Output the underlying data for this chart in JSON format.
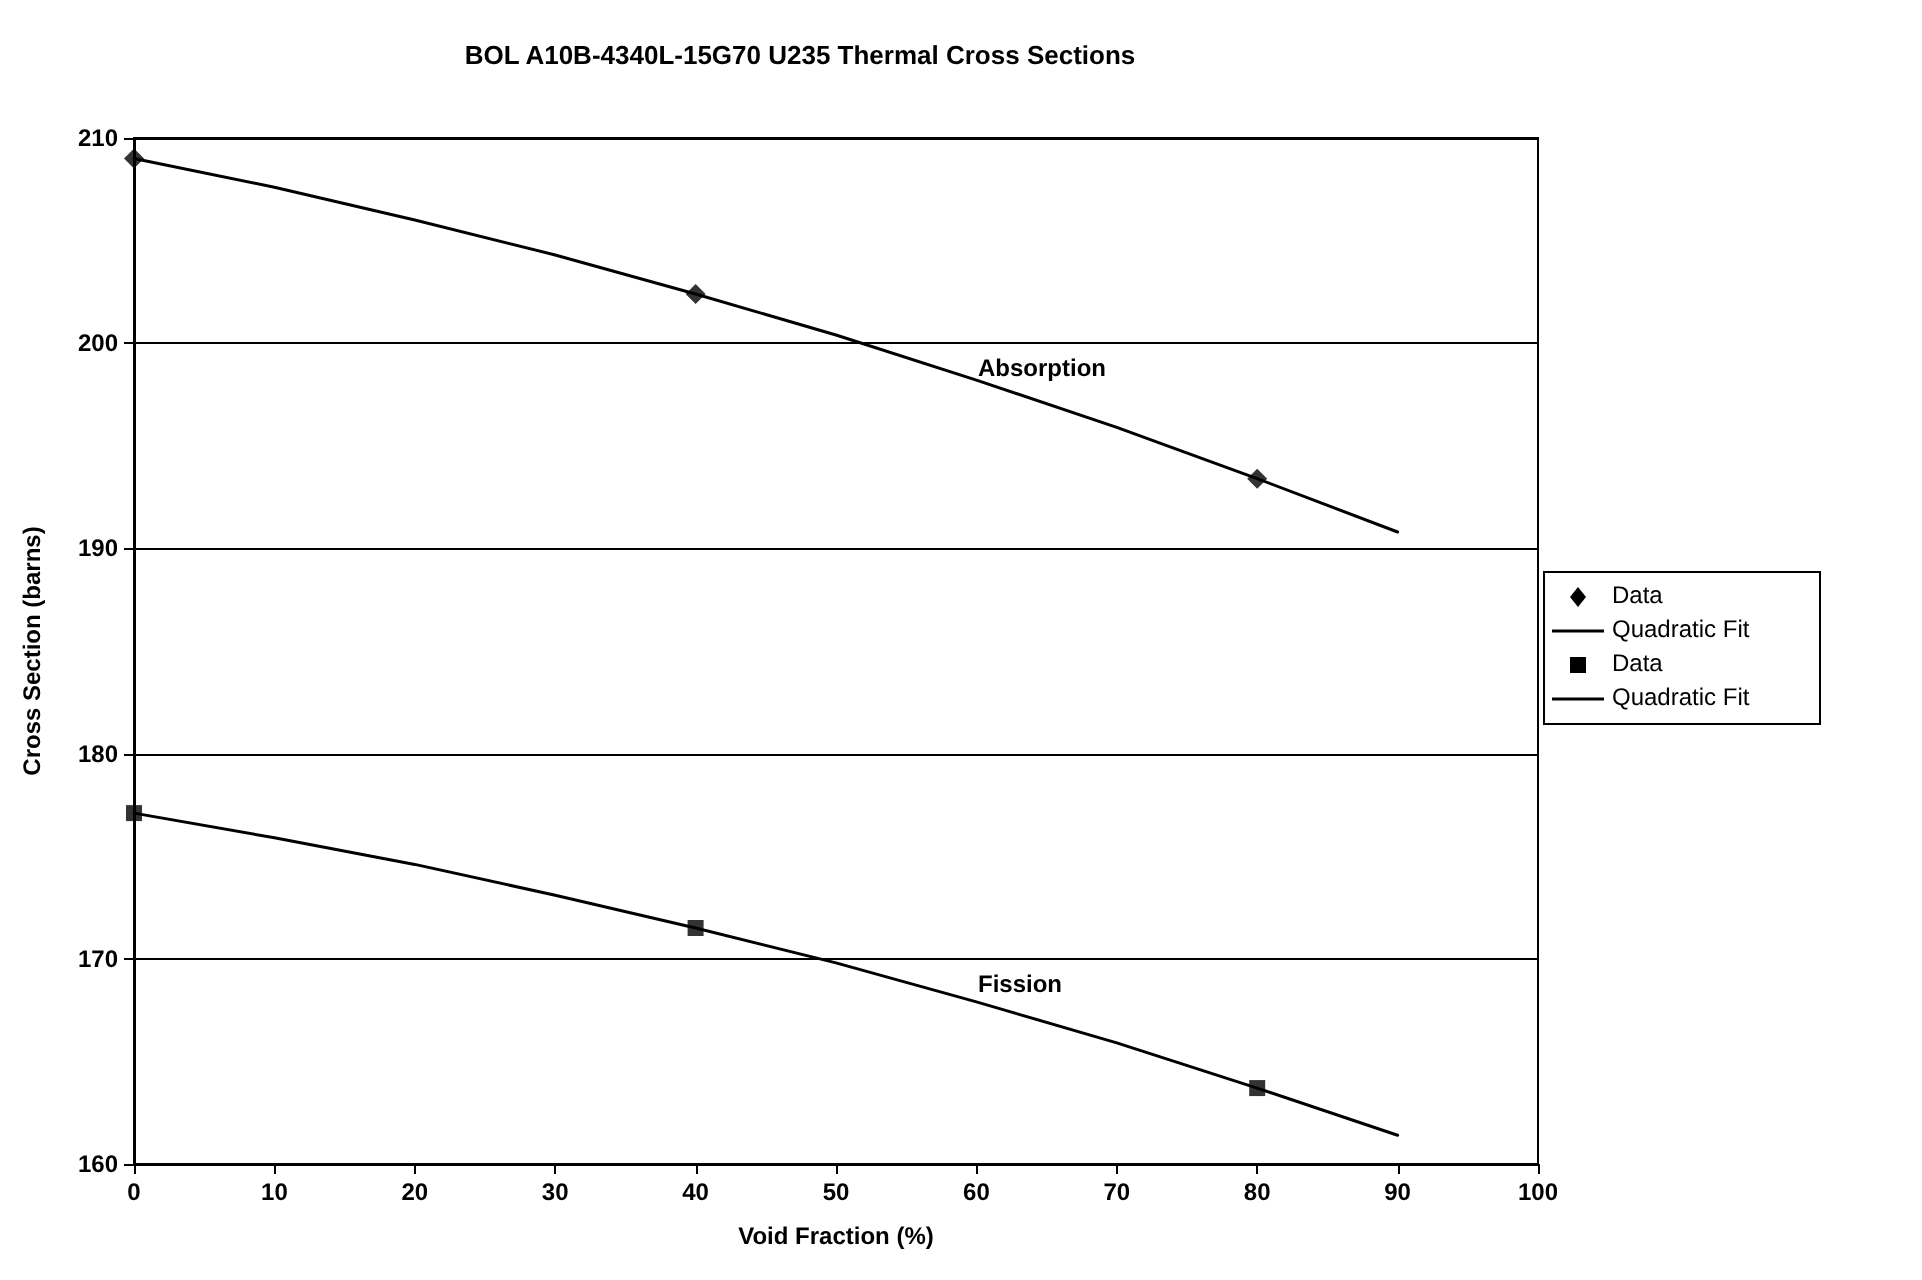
{
  "chart_data": {
    "type": "scatter",
    "title": "BOL A10B-4340L-15G70 U235 Thermal Cross Sections",
    "xlabel": "Void Fraction (%)",
    "ylabel": "Cross Section (barns)",
    "xlim": [
      0,
      100
    ],
    "xticks": [
      0,
      10,
      20,
      30,
      40,
      50,
      60,
      70,
      80,
      90,
      100
    ],
    "ylim": [
      160,
      210
    ],
    "yticks": [
      160,
      170,
      180,
      190,
      200,
      210
    ],
    "grid": "y",
    "legend": "right",
    "annotations": [
      "Absorption",
      "Fission"
    ],
    "series": [
      {
        "name": "Data",
        "type": "scatter",
        "marker": "diamond",
        "color": "#000000",
        "x": [
          0,
          40,
          80
        ],
        "values": [
          209.0,
          202.4,
          193.4
        ]
      },
      {
        "name": "Quadratic Fit",
        "type": "line",
        "marker": "none",
        "line_style": "solid",
        "color": "#000000",
        "x": [
          0,
          10,
          20,
          30,
          40,
          50,
          60,
          70,
          80,
          90
        ],
        "values": [
          209.0,
          207.6,
          206.0,
          204.3,
          202.4,
          200.4,
          198.2,
          195.9,
          193.4,
          190.8
        ]
      },
      {
        "name": "Data",
        "type": "scatter",
        "marker": "square",
        "color": "#000000",
        "x": [
          0,
          40,
          80
        ],
        "values": [
          177.1,
          171.5,
          163.7
        ]
      },
      {
        "name": "Quadratic Fit",
        "type": "line",
        "marker": "none",
        "line_style": "solid",
        "color": "#000000",
        "x": [
          0,
          10,
          20,
          30,
          40,
          50,
          60,
          70,
          80,
          90
        ],
        "values": [
          177.1,
          175.9,
          174.6,
          173.1,
          171.5,
          169.8,
          167.9,
          165.9,
          163.7,
          161.4
        ]
      }
    ]
  }
}
